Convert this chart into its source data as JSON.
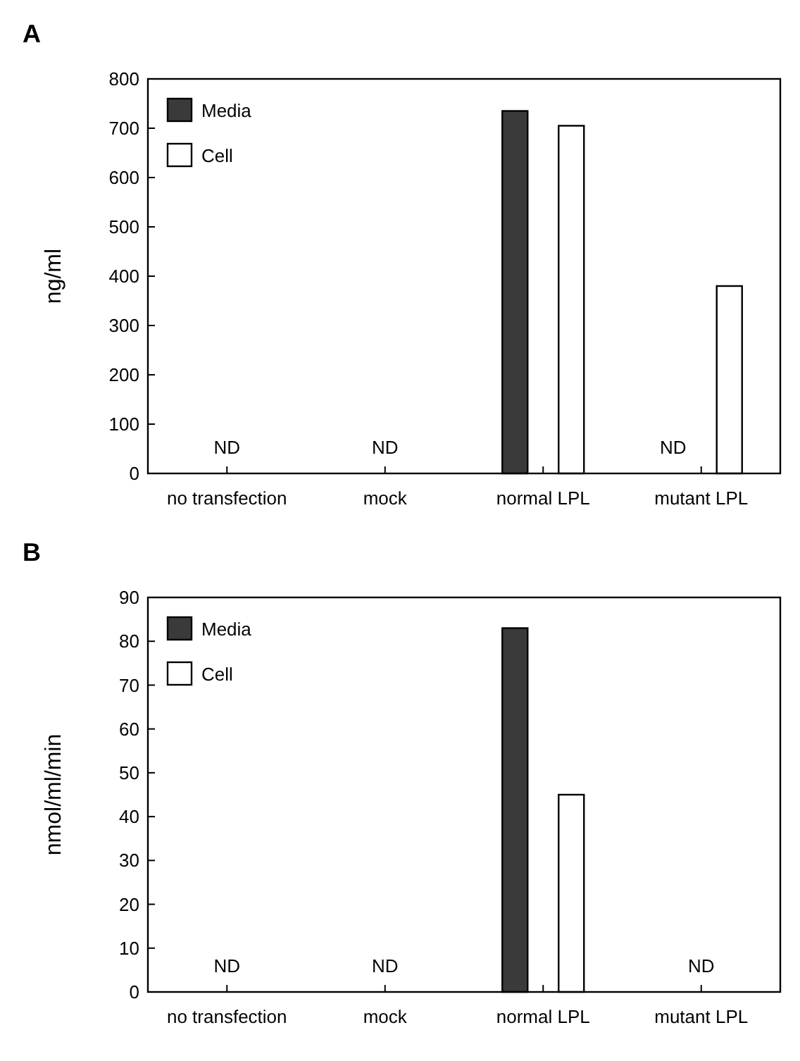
{
  "chart_data": [
    {
      "type": "bar",
      "title": "A",
      "ylabel": "ng/ml",
      "categories": [
        "no transfection",
        "mock",
        "normal LPL",
        "mutant LPL"
      ],
      "ylim": [
        0,
        800
      ],
      "yticks": [
        0,
        100,
        200,
        300,
        400,
        500,
        600,
        700,
        800
      ],
      "legend": "top left",
      "series": [
        {
          "name": "Media",
          "color": "#3a3a3a",
          "values": [
            null,
            null,
            735,
            null
          ]
        },
        {
          "name": "Cell",
          "color": "#ffffff",
          "values": [
            null,
            null,
            705,
            380
          ]
        }
      ],
      "annotations": [
        "ND",
        "ND",
        "ND"
      ]
    },
    {
      "type": "bar",
      "title": "B",
      "ylabel": "nmol/ml/min",
      "categories": [
        "no transfection",
        "mock",
        "normal LPL",
        "mutant LPL"
      ],
      "ylim": [
        0,
        90
      ],
      "yticks": [
        0,
        10,
        20,
        30,
        40,
        50,
        60,
        70,
        80,
        90
      ],
      "legend": "top left",
      "series": [
        {
          "name": "Media",
          "color": "#3a3a3a",
          "values": [
            null,
            null,
            83,
            null
          ]
        },
        {
          "name": "Cell",
          "color": "#ffffff",
          "values": [
            null,
            null,
            45,
            null
          ]
        }
      ],
      "annotations": [
        "ND",
        "ND",
        "ND"
      ]
    }
  ]
}
